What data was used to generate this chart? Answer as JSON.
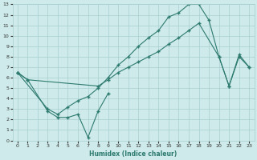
{
  "xlabel": "Humidex (Indice chaleur)",
  "line_color": "#2d7a6e",
  "bg_color": "#ceeaea",
  "grid_color": "#a8d0d0",
  "xlim": [
    -0.5,
    23.5
  ],
  "ylim": [
    0,
    13
  ],
  "xticks": [
    0,
    1,
    2,
    3,
    4,
    5,
    6,
    7,
    8,
    9,
    10,
    11,
    12,
    13,
    14,
    15,
    16,
    17,
    18,
    19,
    20,
    21,
    22,
    23
  ],
  "yticks": [
    0,
    1,
    2,
    3,
    4,
    5,
    6,
    7,
    8,
    9,
    10,
    11,
    12,
    13
  ],
  "line1_x": [
    0,
    1,
    3,
    4,
    5,
    6,
    7,
    8,
    9
  ],
  "line1_y": [
    6.5,
    5.8,
    2.8,
    2.2,
    2.2,
    2.5,
    0.3,
    2.8,
    4.5
  ],
  "line2_x": [
    0,
    1,
    8,
    9,
    10,
    11,
    12,
    13,
    14,
    15,
    16,
    17,
    18,
    20,
    21,
    22,
    23
  ],
  "line2_y": [
    6.5,
    5.8,
    5.2,
    5.8,
    6.5,
    7.0,
    7.5,
    8.0,
    8.5,
    9.2,
    9.8,
    10.5,
    11.2,
    8.0,
    5.2,
    8.0,
    7.0
  ],
  "line3_x": [
    0,
    3,
    4,
    5,
    6,
    7,
    8,
    9,
    10,
    11,
    12,
    13,
    14,
    15,
    16,
    17,
    18,
    19,
    20,
    21,
    22,
    23
  ],
  "line3_y": [
    6.5,
    3.0,
    2.5,
    3.2,
    3.8,
    4.2,
    5.0,
    6.0,
    7.2,
    8.0,
    9.0,
    9.8,
    10.5,
    11.8,
    12.2,
    13.0,
    13.0,
    11.5,
    8.0,
    5.2,
    8.2,
    7.0
  ]
}
